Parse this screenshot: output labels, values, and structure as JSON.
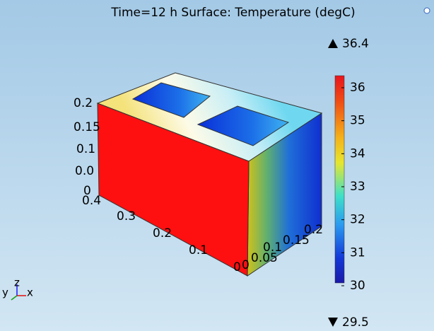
{
  "header": {
    "title": "Time=12 h   Surface: Temperature (degC)"
  },
  "colorbar": {
    "max_label": "36.4",
    "min_label": "29.5",
    "ticks": [
      36,
      35,
      34,
      33,
      32,
      31,
      30
    ]
  },
  "axes": {
    "z_ticks": [
      "0.2",
      "0.15",
      "0.1",
      "0.0",
      "0"
    ],
    "x_ticks": [
      "0.4",
      "0.3",
      "0.2",
      "0.1",
      "0"
    ],
    "y_ticks": [
      "0",
      "0.05",
      "0.1",
      "0.15",
      "0.2"
    ]
  },
  "triad": {
    "y": "y",
    "z": "z",
    "x": "x"
  }
}
